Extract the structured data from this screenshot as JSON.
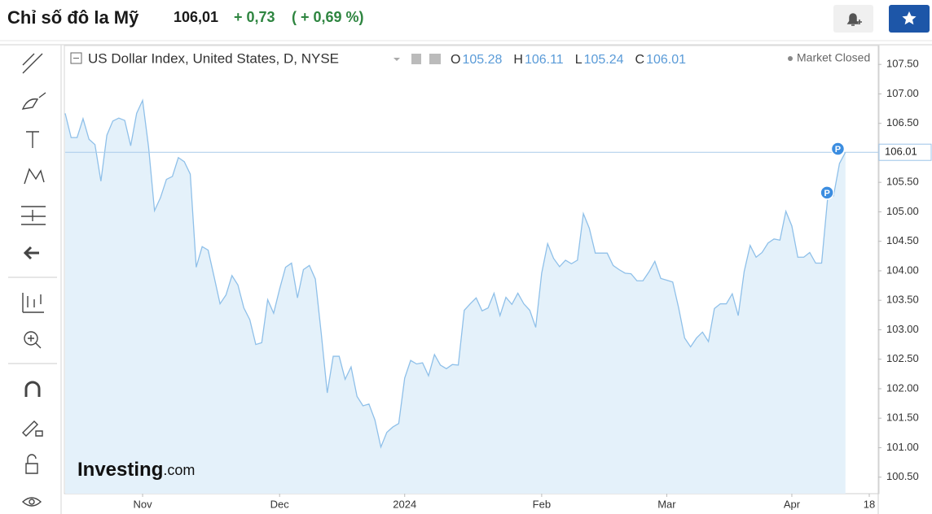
{
  "header": {
    "title": "Chỉ số đô la Mỹ",
    "price": "106,01",
    "change": "+ 0,73",
    "change_pct": "( + 0,69 %)"
  },
  "chart_header": {
    "symbol": "US Dollar Index, United States, D, NYSE",
    "status": "Market Closed",
    "ohlc": [
      {
        "label": "O",
        "value": 105.28
      },
      {
        "label": "H",
        "value": 106.11
      },
      {
        "label": "L",
        "value": 105.24
      },
      {
        "label": "C",
        "value": 106.01
      }
    ]
  },
  "watermark": {
    "brand": "Investing",
    "suffix": ".com"
  },
  "chart_data": {
    "type": "line",
    "color": "#8fc0e9",
    "fill": "#e4f1fa",
    "categories": [
      null,
      null,
      null,
      null,
      null,
      null,
      null,
      null,
      null,
      null,
      null,
      null,
      null,
      "Nov",
      null,
      null,
      null,
      null,
      null,
      null,
      null,
      null,
      null,
      null,
      null,
      null,
      null,
      null,
      null,
      null,
      null,
      null,
      null,
      null,
      null,
      null,
      "Dec",
      null,
      null,
      null,
      null,
      null,
      null,
      null,
      null,
      null,
      null,
      null,
      null,
      null,
      null,
      null,
      null,
      null,
      null,
      null,
      null,
      "2024",
      null,
      null,
      null,
      null,
      null,
      null,
      null,
      null,
      null,
      null,
      null,
      null,
      null,
      null,
      null,
      null,
      null,
      null,
      null,
      null,
      null,
      null,
      "Feb",
      null,
      null,
      null,
      null,
      null,
      null,
      null,
      null,
      null,
      null,
      null,
      null,
      null,
      null,
      null,
      null,
      null,
      null,
      null,
      null,
      "Mar",
      null,
      null,
      null,
      null,
      null,
      null,
      null,
      null,
      null,
      null,
      null,
      null,
      null,
      null,
      null,
      null,
      null,
      null,
      null,
      null,
      "Apr",
      null,
      null,
      null,
      null,
      null,
      null,
      null,
      null,
      null,
      null,
      null,
      null,
      "18"
    ],
    "values": [
      106.67,
      106.26,
      106.26,
      106.58,
      106.23,
      106.14,
      105.52,
      106.3,
      106.54,
      106.59,
      106.55,
      106.12,
      106.67,
      106.89,
      106.1,
      105.02,
      105.24,
      105.55,
      105.6,
      105.92,
      105.85,
      105.64,
      104.06,
      104.41,
      104.35,
      103.9,
      103.44,
      103.59,
      103.92,
      103.76,
      103.37,
      103.17,
      102.75,
      102.78,
      103.51,
      103.28,
      103.69,
      104.06,
      104.13,
      103.54,
      104.02,
      104.09,
      103.86,
      102.93,
      101.93,
      102.55,
      102.55,
      102.16,
      102.37,
      101.87,
      101.71,
      101.74,
      101.47,
      101.01,
      101.26,
      101.35,
      101.41,
      102.18,
      102.48,
      102.42,
      102.44,
      102.22,
      102.58,
      102.4,
      102.34,
      102.41,
      102.4,
      103.33,
      103.44,
      103.54,
      103.32,
      103.37,
      103.62,
      103.24,
      103.55,
      103.43,
      103.62,
      103.44,
      103.33,
      103.04,
      103.96,
      104.46,
      104.21,
      104.07,
      104.18,
      104.12,
      104.18,
      104.97,
      104.72,
      104.3,
      104.3,
      104.3,
      104.09,
      104.02,
      103.96,
      103.95,
      103.83,
      103.83,
      103.98,
      104.16,
      103.87,
      103.84,
      103.81,
      103.37,
      102.86,
      102.71,
      102.86,
      102.96,
      102.8,
      103.36,
      103.44,
      103.44,
      103.61,
      103.24,
      103.99,
      104.43,
      104.23,
      104.31,
      104.47,
      104.54,
      104.52,
      105.01,
      104.76,
      104.23,
      104.23,
      104.31,
      104.13,
      104.13,
      105.22,
      105.27,
      105.82,
      106.01,
      null,
      null,
      null,
      null
    ],
    "ylim": [
      100.22,
      107.82
    ],
    "yticks": [
      {
        "value": 100.5,
        "label": "100.50"
      },
      {
        "value": 101,
        "label": "101.00"
      },
      {
        "value": 101.5,
        "label": "101.50"
      },
      {
        "value": 102,
        "label": "102.00"
      },
      {
        "value": 102.5,
        "label": "102.50"
      },
      {
        "value": 103,
        "label": "103.00"
      },
      {
        "value": 103.5,
        "label": "103.50"
      },
      {
        "value": 104,
        "label": "104.00"
      },
      {
        "value": 104.5,
        "label": "104.50"
      },
      {
        "value": 105,
        "label": "105.00"
      },
      {
        "value": 105.5,
        "label": "105.50"
      },
      {
        "value": 106.5,
        "label": "106.50"
      },
      {
        "value": 107,
        "label": "107.00"
      },
      {
        "value": 107.5,
        "label": "107.50"
      }
    ],
    "last_price": 106.01,
    "annotations": [
      "P",
      "P"
    ]
  }
}
